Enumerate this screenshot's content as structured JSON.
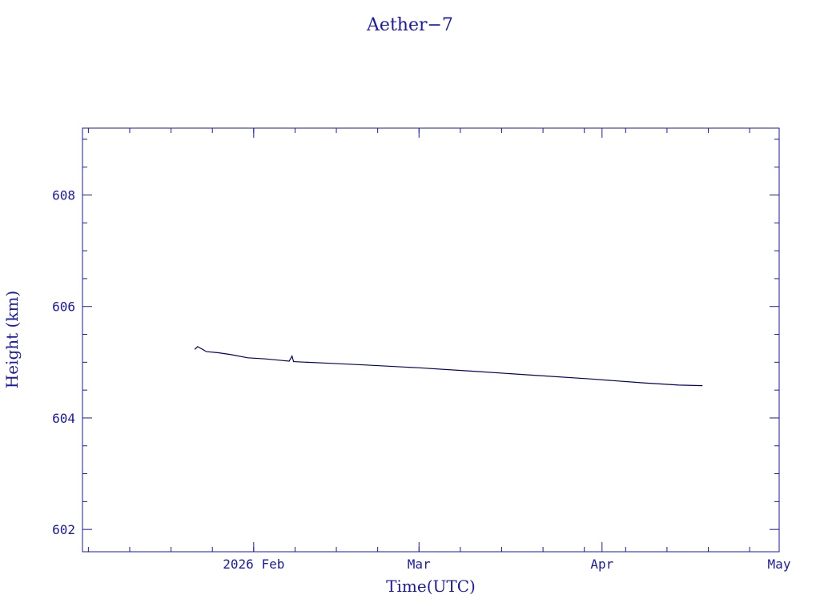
{
  "chart_data": {
    "type": "line",
    "title": "Aether−7",
    "xlabel": "Time(UTC)",
    "ylabel": "Height (km)",
    "x_axis": {
      "type": "time",
      "range": [
        "2026-01-03",
        "2026-05-01"
      ],
      "major_ticks": [
        {
          "date": "2026-02-01",
          "label": "2026 Feb"
        },
        {
          "date": "2026-03-01",
          "label": "Mar"
        },
        {
          "date": "2026-04-01",
          "label": "Apr"
        },
        {
          "date": "2026-05-01",
          "label": "May"
        }
      ],
      "minor_tick_interval_days": 7
    },
    "y_axis": {
      "range": [
        601.6,
        609.2
      ],
      "major_ticks": [
        602,
        604,
        606,
        608
      ],
      "minor_tick_interval": 0.5
    },
    "grid": false,
    "series": [
      {
        "color": "#000066",
        "points": [
          {
            "x": "2026-01-22",
            "y": 605.23
          },
          {
            "x": "2026-01-22T12:00",
            "y": 605.28
          },
          {
            "x": "2026-01-23",
            "y": 605.25
          },
          {
            "x": "2026-01-24",
            "y": 605.19
          },
          {
            "x": "2026-01-26",
            "y": 605.17
          },
          {
            "x": "2026-01-28",
            "y": 605.14
          },
          {
            "x": "2026-01-31",
            "y": 605.08
          },
          {
            "x": "2026-02-03",
            "y": 605.06
          },
          {
            "x": "2026-02-06",
            "y": 605.03
          },
          {
            "x": "2026-02-07",
            "y": 605.02
          },
          {
            "x": "2026-02-07T12:00",
            "y": 605.11
          },
          {
            "x": "2026-02-07T18:00",
            "y": 605.01
          },
          {
            "x": "2026-02-14",
            "y": 604.98
          },
          {
            "x": "2026-02-20",
            "y": 604.95
          },
          {
            "x": "2026-03-01",
            "y": 604.9
          },
          {
            "x": "2026-03-10",
            "y": 604.84
          },
          {
            "x": "2026-03-20",
            "y": 604.77
          },
          {
            "x": "2026-03-30",
            "y": 604.7
          },
          {
            "x": "2026-04-08",
            "y": 604.63
          },
          {
            "x": "2026-04-14",
            "y": 604.59
          },
          {
            "x": "2026-04-18",
            "y": 604.58
          }
        ]
      }
    ]
  }
}
